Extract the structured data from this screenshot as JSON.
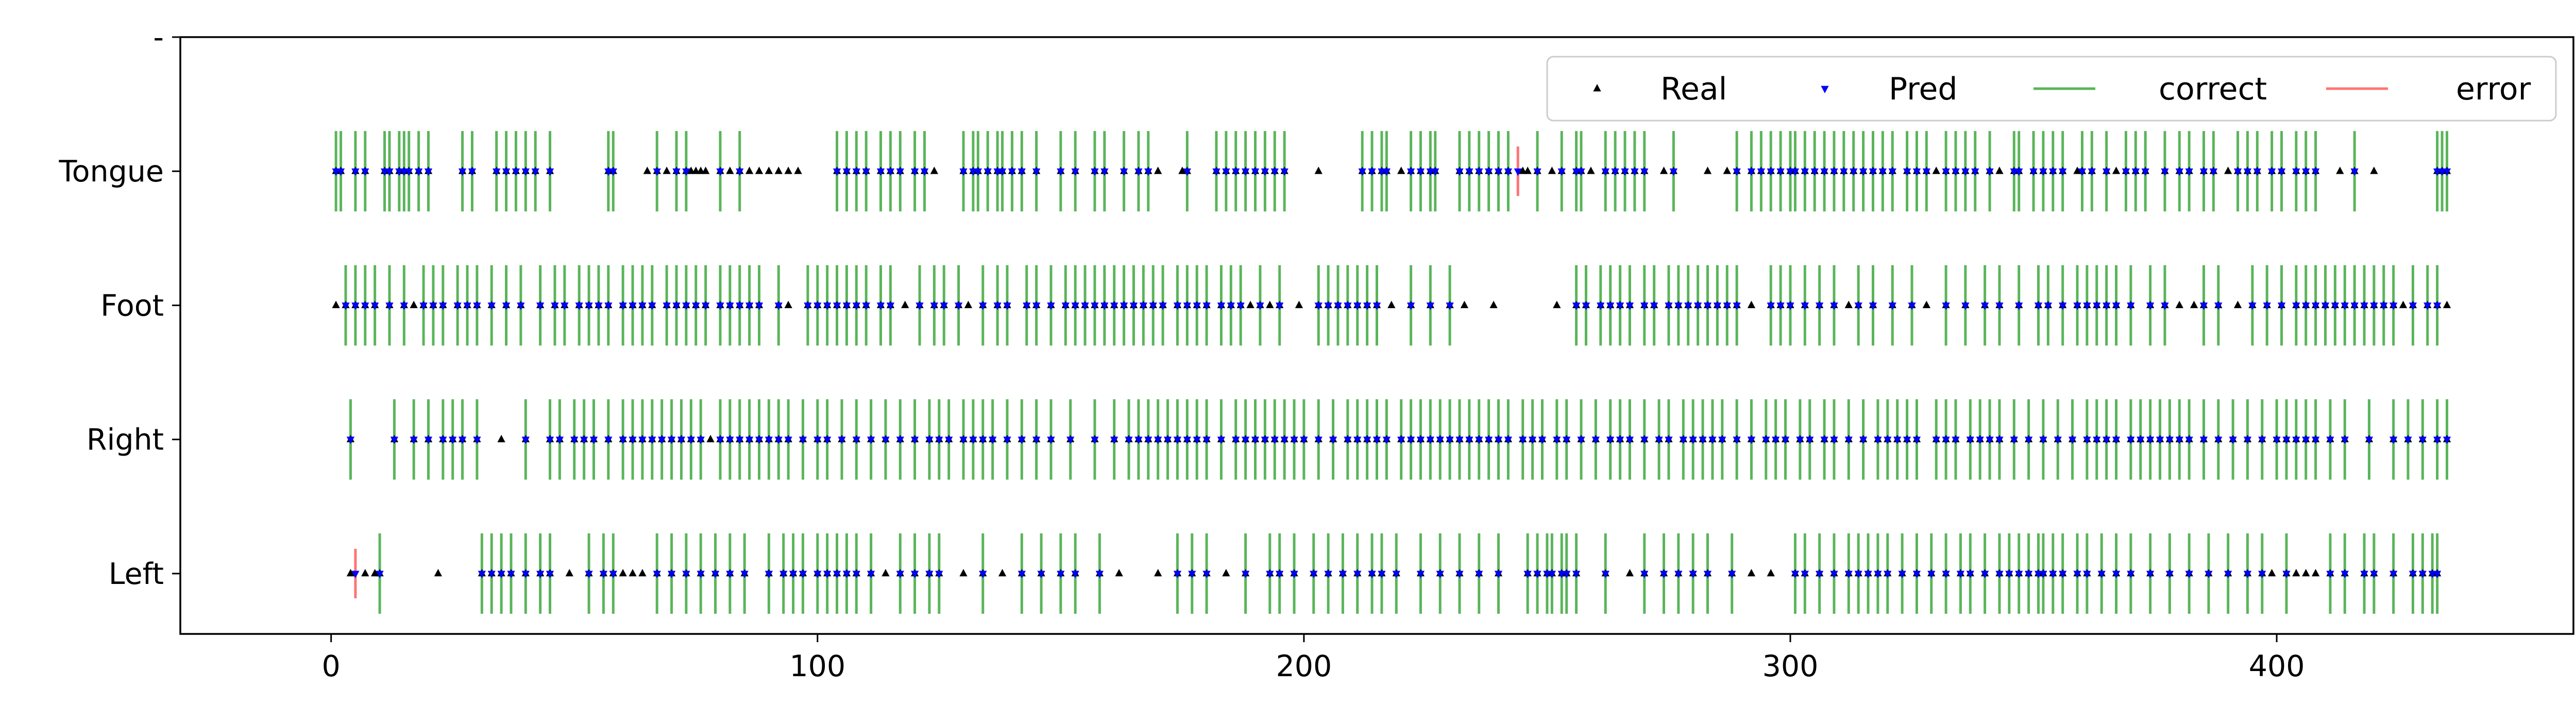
{
  "chart_data": {
    "type": "scatter",
    "title": "",
    "xlabel": "",
    "ylabel": "",
    "xlim": [
      -31,
      461
    ],
    "ylim": [
      -0.45,
      4.0
    ],
    "xticks": [
      0,
      100,
      200,
      300,
      400
    ],
    "yticks": [
      {
        "value": 0,
        "label": "Left"
      },
      {
        "value": 1,
        "label": "Right"
      },
      {
        "value": 2,
        "label": "Foot"
      },
      {
        "value": 3,
        "label": "Tongue"
      },
      {
        "value": 4,
        "label": "-"
      }
    ],
    "grid": false,
    "legend_position": "top-right",
    "legend": [
      {
        "key": "real",
        "label": "Real",
        "color": "#000000",
        "marker": "triangle-up"
      },
      {
        "key": "pred",
        "label": "Pred",
        "color": "#0000ff",
        "marker": "triangle-down"
      },
      {
        "key": "correct",
        "label": "correct",
        "color": "#2ca02c",
        "marker": "line"
      },
      {
        "key": "error",
        "label": "error",
        "color": "#ff4d4d",
        "marker": "line"
      }
    ],
    "series": [
      {
        "name": "Real",
        "class": 3,
        "x": [
          1,
          2,
          5,
          7,
          11,
          12,
          14,
          15,
          16,
          18,
          20,
          27,
          29,
          34,
          36,
          38,
          40,
          42,
          45,
          57,
          58,
          65,
          67,
          69,
          71,
          73,
          74,
          75,
          76,
          77,
          80,
          82,
          84,
          86,
          88,
          90,
          92,
          94,
          96,
          104,
          106,
          108,
          110,
          113,
          115,
          117,
          120,
          122,
          124,
          130,
          132,
          133,
          135,
          137,
          138,
          140,
          142,
          145,
          150,
          153,
          157,
          159,
          163,
          166,
          168,
          170,
          175,
          176,
          182,
          184,
          186,
          188,
          190,
          192,
          194,
          196,
          203,
          212,
          214,
          216,
          217,
          220,
          222,
          224,
          226,
          227,
          232,
          234,
          236,
          238,
          240,
          242,
          245,
          246,
          248,
          251,
          253,
          256,
          257,
          259,
          262,
          264,
          266,
          268,
          270,
          274,
          276,
          283,
          287,
          289,
          292,
          294,
          296,
          298,
          300,
          301,
          303,
          305,
          307,
          309,
          311,
          313,
          315,
          317,
          319,
          321,
          324,
          326,
          328,
          330,
          332,
          334,
          336,
          338,
          341,
          343,
          346,
          347,
          350,
          352,
          354,
          356,
          359,
          360,
          362,
          365,
          367,
          369,
          371,
          373,
          377,
          380,
          382,
          385,
          387,
          390,
          392,
          394,
          396,
          399,
          401,
          404,
          406,
          408,
          413,
          416,
          420,
          433,
          434,
          435
        ]
      },
      {
        "name": "Real",
        "class": 2,
        "x": [
          1,
          3,
          5,
          7,
          9,
          12,
          15,
          17,
          19,
          21,
          23,
          26,
          28,
          30,
          33,
          36,
          39,
          43,
          46,
          48,
          51,
          53,
          55,
          57,
          60,
          62,
          64,
          66,
          69,
          71,
          73,
          75,
          77,
          80,
          82,
          84,
          86,
          88,
          92,
          94,
          98,
          100,
          102,
          104,
          106,
          108,
          110,
          113,
          115,
          118,
          121,
          124,
          126,
          129,
          131,
          134,
          137,
          139,
          143,
          145,
          148,
          151,
          153,
          155,
          157,
          159,
          161,
          163,
          165,
          167,
          169,
          171,
          174,
          176,
          178,
          180,
          183,
          185,
          187,
          189,
          191,
          193,
          195,
          199,
          203,
          205,
          207,
          209,
          211,
          213,
          215,
          218,
          222,
          226,
          230,
          233,
          239,
          252,
          256,
          258,
          261,
          263,
          265,
          267,
          270,
          272,
          275,
          277,
          279,
          281,
          283,
          285,
          287,
          289,
          292,
          296,
          298,
          300,
          303,
          306,
          309,
          312,
          314,
          317,
          321,
          325,
          328,
          332,
          336,
          340,
          343,
          347,
          351,
          353,
          356,
          359,
          361,
          363,
          365,
          367,
          370,
          374,
          377,
          380,
          383,
          385,
          388,
          392,
          395,
          398,
          401,
          404,
          406,
          408,
          410,
          412,
          414,
          416,
          418,
          420,
          422,
          424,
          426,
          428,
          431,
          433,
          435
        ]
      },
      {
        "name": "Real",
        "class": 1,
        "x": [
          4,
          13,
          17,
          20,
          23,
          25,
          27,
          30,
          35,
          40,
          45,
          47,
          50,
          52,
          54,
          57,
          60,
          62,
          64,
          66,
          68,
          70,
          72,
          74,
          76,
          78,
          80,
          82,
          84,
          86,
          88,
          90,
          92,
          94,
          97,
          100,
          102,
          105,
          108,
          111,
          114,
          117,
          120,
          123,
          125,
          127,
          130,
          132,
          134,
          136,
          139,
          142,
          145,
          148,
          152,
          157,
          161,
          164,
          166,
          168,
          170,
          172,
          174,
          176,
          178,
          180,
          183,
          186,
          188,
          190,
          192,
          194,
          196,
          198,
          200,
          203,
          206,
          209,
          211,
          213,
          215,
          217,
          220,
          222,
          224,
          226,
          228,
          230,
          232,
          234,
          236,
          238,
          240,
          242,
          245,
          247,
          249,
          252,
          254,
          257,
          260,
          263,
          265,
          267,
          270,
          273,
          275,
          278,
          280,
          282,
          284,
          286,
          289,
          292,
          295,
          297,
          299,
          302,
          304,
          307,
          309,
          312,
          315,
          318,
          320,
          322,
          324,
          326,
          330,
          332,
          334,
          337,
          339,
          341,
          343,
          346,
          349,
          352,
          355,
          358,
          361,
          363,
          365,
          367,
          370,
          372,
          374,
          376,
          378,
          380,
          382,
          385,
          388,
          391,
          394,
          397,
          400,
          402,
          404,
          406,
          408,
          411,
          414,
          419,
          424,
          427,
          430,
          433,
          435
        ]
      },
      {
        "name": "Real",
        "class": 0,
        "x": [
          4,
          7,
          9,
          10,
          22,
          31,
          33,
          35,
          37,
          40,
          43,
          45,
          49,
          53,
          56,
          58,
          60,
          62,
          64,
          67,
          70,
          73,
          76,
          79,
          82,
          85,
          90,
          93,
          95,
          97,
          100,
          102,
          104,
          106,
          108,
          111,
          114,
          117,
          120,
          123,
          125,
          130,
          134,
          138,
          142,
          146,
          150,
          153,
          158,
          162,
          170,
          174,
          177,
          180,
          184,
          188,
          193,
          195,
          198,
          202,
          205,
          208,
          211,
          214,
          216,
          219,
          224,
          228,
          232,
          236,
          240,
          246,
          248,
          250,
          251,
          253,
          254,
          256,
          262,
          267,
          270,
          274,
          277,
          280,
          283,
          288,
          292,
          296,
          301,
          303,
          306,
          309,
          312,
          314,
          316,
          318,
          320,
          323,
          326,
          329,
          332,
          335,
          337,
          340,
          343,
          345,
          347,
          349,
          351,
          352,
          354,
          356,
          359,
          361,
          364,
          367,
          370,
          374,
          378,
          382,
          386,
          390,
          394,
          397,
          399,
          402,
          404,
          406,
          408,
          411,
          414,
          418,
          420,
          424,
          428,
          430,
          432,
          433
        ]
      },
      {
        "name": "Pred",
        "class": 3,
        "x": [
          1,
          2,
          5,
          7,
          11,
          12,
          14,
          15,
          16,
          18,
          20,
          27,
          29,
          34,
          36,
          38,
          40,
          42,
          45,
          57,
          58,
          67,
          71,
          73,
          80,
          84,
          104,
          106,
          108,
          110,
          113,
          115,
          117,
          120,
          122,
          130,
          132,
          133,
          135,
          137,
          138,
          140,
          142,
          145,
          150,
          153,
          157,
          159,
          163,
          166,
          168,
          176,
          182,
          184,
          186,
          188,
          190,
          192,
          194,
          196,
          212,
          214,
          216,
          217,
          222,
          224,
          226,
          227,
          232,
          234,
          236,
          238,
          240,
          242,
          244,
          248,
          253,
          256,
          257,
          262,
          264,
          266,
          268,
          270,
          276,
          289,
          292,
          294,
          296,
          298,
          300,
          301,
          303,
          305,
          307,
          309,
          311,
          313,
          315,
          317,
          319,
          321,
          324,
          326,
          328,
          332,
          334,
          336,
          338,
          341,
          346,
          347,
          350,
          352,
          354,
          356,
          360,
          362,
          365,
          369,
          371,
          373,
          377,
          380,
          382,
          385,
          387,
          392,
          394,
          396,
          399,
          401,
          404,
          406,
          408,
          416,
          433,
          434,
          435
        ]
      },
      {
        "name": "Pred",
        "class": 2,
        "x": [
          3,
          5,
          7,
          9,
          12,
          15,
          19,
          21,
          23,
          26,
          28,
          30,
          33,
          36,
          39,
          43,
          46,
          48,
          51,
          53,
          55,
          57,
          60,
          62,
          64,
          66,
          69,
          71,
          73,
          75,
          77,
          80,
          82,
          84,
          86,
          88,
          92,
          98,
          100,
          102,
          104,
          106,
          108,
          110,
          113,
          115,
          121,
          124,
          126,
          129,
          134,
          137,
          139,
          143,
          145,
          148,
          151,
          153,
          155,
          157,
          159,
          161,
          163,
          165,
          167,
          169,
          171,
          174,
          176,
          178,
          180,
          183,
          185,
          187,
          191,
          195,
          203,
          205,
          207,
          209,
          211,
          213,
          215,
          222,
          226,
          230,
          256,
          258,
          261,
          263,
          265,
          267,
          270,
          272,
          275,
          277,
          279,
          281,
          283,
          285,
          287,
          289,
          296,
          298,
          300,
          303,
          306,
          309,
          314,
          317,
          321,
          325,
          332,
          336,
          340,
          343,
          347,
          351,
          353,
          356,
          359,
          361,
          363,
          365,
          367,
          370,
          374,
          377,
          385,
          388,
          395,
          398,
          401,
          404,
          406,
          408,
          410,
          412,
          414,
          416,
          418,
          420,
          422,
          424,
          428,
          431,
          433
        ]
      },
      {
        "name": "Pred",
        "class": 1,
        "x": [
          4,
          13,
          17,
          20,
          23,
          25,
          27,
          30,
          40,
          45,
          47,
          50,
          52,
          54,
          57,
          60,
          62,
          64,
          66,
          68,
          70,
          72,
          74,
          76,
          80,
          82,
          84,
          86,
          88,
          90,
          92,
          94,
          97,
          100,
          102,
          105,
          108,
          111,
          114,
          117,
          120,
          123,
          125,
          127,
          130,
          132,
          134,
          136,
          139,
          142,
          145,
          148,
          152,
          157,
          161,
          164,
          166,
          168,
          170,
          172,
          174,
          176,
          178,
          180,
          183,
          186,
          188,
          190,
          192,
          194,
          196,
          198,
          200,
          203,
          206,
          209,
          211,
          213,
          215,
          217,
          220,
          222,
          224,
          226,
          228,
          230,
          232,
          234,
          236,
          238,
          240,
          242,
          245,
          247,
          249,
          252,
          254,
          257,
          260,
          263,
          265,
          267,
          270,
          273,
          275,
          278,
          280,
          282,
          284,
          286,
          289,
          292,
          295,
          297,
          299,
          302,
          304,
          307,
          309,
          312,
          315,
          318,
          320,
          322,
          324,
          326,
          330,
          332,
          334,
          337,
          339,
          341,
          343,
          346,
          349,
          352,
          355,
          358,
          361,
          363,
          365,
          367,
          370,
          372,
          374,
          376,
          378,
          380,
          382,
          385,
          388,
          391,
          394,
          397,
          400,
          402,
          404,
          406,
          408,
          411,
          414,
          419,
          424,
          427,
          430,
          433,
          435
        ]
      },
      {
        "name": "Pred",
        "class": 0,
        "x": [
          5,
          10,
          31,
          33,
          35,
          37,
          40,
          43,
          45,
          53,
          56,
          58,
          67,
          70,
          73,
          76,
          79,
          82,
          85,
          90,
          93,
          95,
          97,
          100,
          102,
          104,
          106,
          108,
          111,
          117,
          120,
          123,
          125,
          134,
          142,
          146,
          150,
          153,
          158,
          174,
          177,
          180,
          188,
          193,
          195,
          198,
          202,
          205,
          208,
          211,
          214,
          216,
          219,
          224,
          228,
          232,
          236,
          240,
          246,
          248,
          250,
          251,
          253,
          254,
          256,
          262,
          270,
          274,
          277,
          280,
          283,
          288,
          301,
          303,
          306,
          309,
          312,
          314,
          316,
          318,
          320,
          323,
          326,
          329,
          332,
          335,
          337,
          340,
          343,
          345,
          347,
          349,
          351,
          352,
          354,
          356,
          359,
          361,
          364,
          367,
          370,
          374,
          378,
          382,
          386,
          390,
          394,
          397,
          402,
          411,
          414,
          418,
          420,
          424,
          428,
          430,
          432,
          433
        ]
      }
    ]
  }
}
